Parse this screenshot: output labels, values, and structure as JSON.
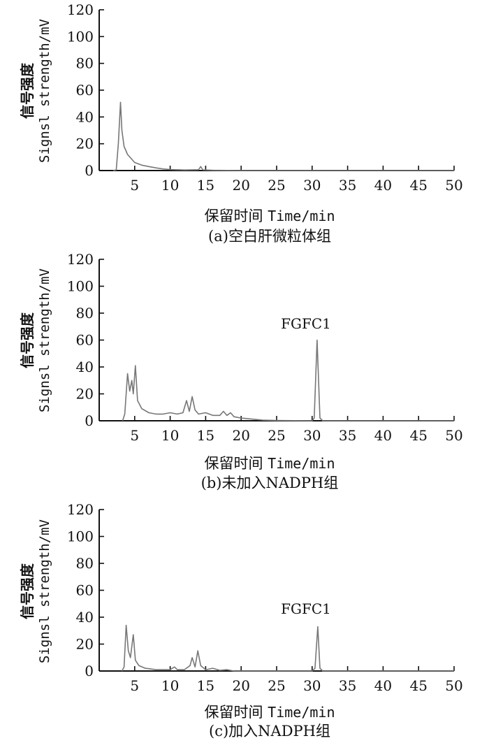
{
  "chart_data": [
    {
      "type": "line",
      "panel": "a",
      "caption": "(a)空白肝微粒体组",
      "ylabel_cn": "信号强度",
      "ylabel_en": "Signsl strength/mV",
      "xlabel_cn": "保留时间",
      "xlabel_en": "Time/min",
      "xlim": [
        0,
        50
      ],
      "ylim": [
        0,
        120
      ],
      "xticks": [
        "5",
        "10",
        "15",
        "20",
        "25",
        "30",
        "35",
        "40",
        "45",
        "50"
      ],
      "yticks": [
        "0",
        "20",
        "40",
        "60",
        "80",
        "100",
        "120"
      ],
      "annotation": "",
      "series": [
        {
          "values": [
            [
              2.0,
              0
            ],
            [
              2.4,
              0.5
            ],
            [
              2.7,
              20
            ],
            [
              3.0,
              51
            ],
            [
              3.2,
              30
            ],
            [
              3.5,
              18
            ],
            [
              4,
              12
            ],
            [
              5,
              6
            ],
            [
              6,
              4
            ],
            [
              7,
              3
            ],
            [
              8,
              2
            ],
            [
              9,
              1.2
            ],
            [
              10,
              0.8
            ],
            [
              12,
              0.4
            ],
            [
              14,
              0.6
            ],
            [
              14.3,
              3
            ],
            [
              14.6,
              0.5
            ],
            [
              16,
              0.2
            ],
            [
              20,
              0
            ],
            [
              50,
              0
            ]
          ]
        }
      ]
    },
    {
      "type": "line",
      "panel": "b",
      "caption": "(b)未加入NADPH组",
      "ylabel_cn": "信号强度",
      "ylabel_en": "Signsl strength/mV",
      "xlabel_cn": "保留时间",
      "xlabel_en": "Time/min",
      "xlim": [
        0,
        50
      ],
      "ylim": [
        0,
        120
      ],
      "xticks": [
        "5",
        "10",
        "15",
        "20",
        "25",
        "30",
        "35",
        "40",
        "45",
        "50"
      ],
      "yticks": [
        "0",
        "20",
        "40",
        "60",
        "80",
        "100",
        "120"
      ],
      "annotation": "FGFC1",
      "series": [
        {
          "values": [
            [
              3.3,
              0
            ],
            [
              3.6,
              5
            ],
            [
              4.0,
              35
            ],
            [
              4.3,
              22
            ],
            [
              4.6,
              30
            ],
            [
              4.8,
              20
            ],
            [
              5.1,
              41
            ],
            [
              5.4,
              15
            ],
            [
              6,
              9
            ],
            [
              7,
              6
            ],
            [
              8,
              5
            ],
            [
              9,
              5
            ],
            [
              10,
              6
            ],
            [
              11,
              5
            ],
            [
              11.8,
              6
            ],
            [
              12.3,
              15
            ],
            [
              12.7,
              7
            ],
            [
              13.1,
              18
            ],
            [
              13.5,
              8
            ],
            [
              14,
              5
            ],
            [
              15,
              6
            ],
            [
              16,
              4
            ],
            [
              17,
              4
            ],
            [
              17.5,
              7
            ],
            [
              18,
              4
            ],
            [
              18.5,
              6
            ],
            [
              19,
              3
            ],
            [
              20,
              2
            ],
            [
              21,
              1.5
            ],
            [
              22,
              1
            ],
            [
              23,
              0.5
            ],
            [
              25,
              0.2
            ],
            [
              30,
              0
            ],
            [
              30.3,
              2
            ],
            [
              30.7,
              60
            ],
            [
              31.1,
              2
            ],
            [
              31.5,
              0
            ],
            [
              50,
              0
            ]
          ]
        }
      ]
    },
    {
      "type": "line",
      "panel": "c",
      "caption": "(c)加入NADPH组",
      "ylabel_cn": "信号强度",
      "ylabel_en": "Signsl strength/mV",
      "xlabel_cn": "保留时间",
      "xlabel_en": "Time/min",
      "xlim": [
        0,
        50
      ],
      "ylim": [
        0,
        120
      ],
      "xticks": [
        "5",
        "10",
        "15",
        "20",
        "25",
        "30",
        "35",
        "40",
        "45",
        "50"
      ],
      "yticks": [
        "0",
        "20",
        "40",
        "60",
        "80",
        "100",
        "120"
      ],
      "annotation": "FGFC1",
      "series": [
        {
          "values": [
            [
              3.2,
              0
            ],
            [
              3.5,
              3
            ],
            [
              3.8,
              34
            ],
            [
              4.1,
              15
            ],
            [
              4.4,
              10
            ],
            [
              4.8,
              27
            ],
            [
              5.1,
              8
            ],
            [
              5.6,
              4
            ],
            [
              6.5,
              2
            ],
            [
              8,
              1
            ],
            [
              10,
              1
            ],
            [
              10.6,
              3
            ],
            [
              11,
              1
            ],
            [
              12,
              1
            ],
            [
              12.8,
              4
            ],
            [
              13.1,
              10
            ],
            [
              13.5,
              3
            ],
            [
              13.9,
              15
            ],
            [
              14.3,
              4
            ],
            [
              15,
              1
            ],
            [
              16,
              2
            ],
            [
              17,
              0.5
            ],
            [
              18,
              1
            ],
            [
              19,
              0
            ],
            [
              30,
              0
            ],
            [
              30.4,
              2
            ],
            [
              30.8,
              33
            ],
            [
              31.1,
              2
            ],
            [
              31.5,
              0
            ],
            [
              50,
              0
            ]
          ]
        }
      ]
    }
  ]
}
